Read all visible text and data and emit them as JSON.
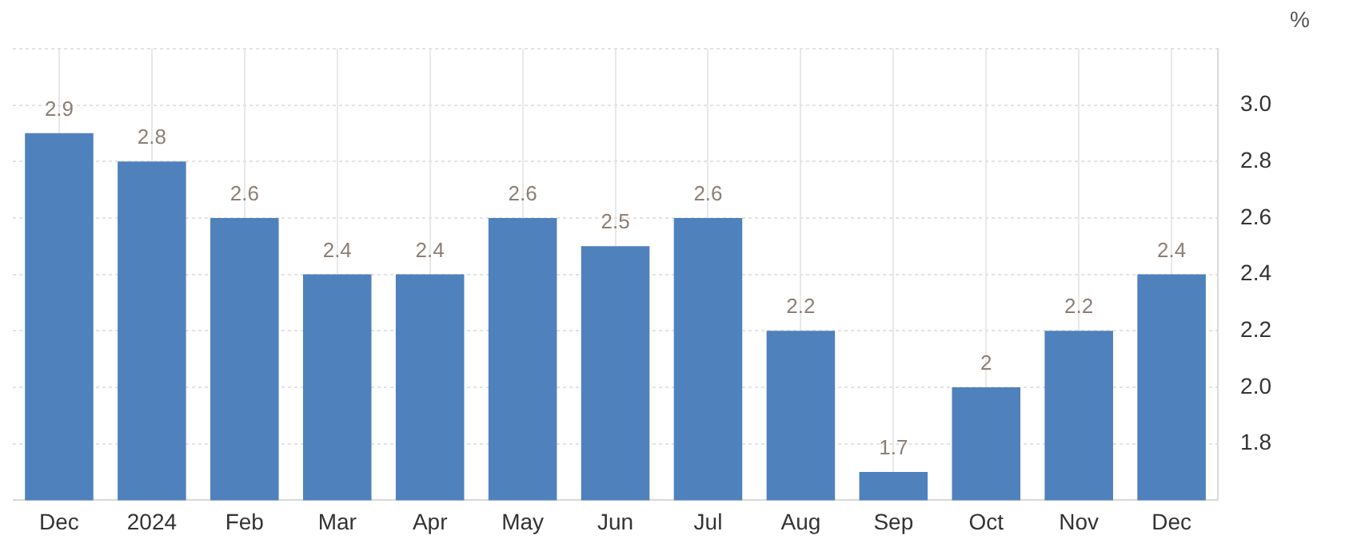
{
  "chart_data": {
    "type": "bar",
    "ylabel": "%",
    "categories": [
      "Dec",
      "2024",
      "Feb",
      "Mar",
      "Apr",
      "May",
      "Jun",
      "Jul",
      "Aug",
      "Sep",
      "Oct",
      "Nov",
      "Dec"
    ],
    "values": [
      2.9,
      2.8,
      2.6,
      2.4,
      2.4,
      2.6,
      2.5,
      2.6,
      2.2,
      1.7,
      2,
      2.2,
      2.4
    ],
    "color": "#4f81bd",
    "ylim": [
      1.6,
      3.2
    ],
    "yticks": [
      {
        "value": 1.8,
        "label": "1.8"
      },
      {
        "value": 2,
        "label": "2.0"
      },
      {
        "value": 2.2,
        "label": "2.2"
      },
      {
        "value": 2.4,
        "label": "2.4"
      },
      {
        "value": 2.6,
        "label": "2.6"
      },
      {
        "value": 2.8,
        "label": "2.8"
      },
      {
        "value": 3,
        "label": "3.0"
      },
      {
        "value": 3.2,
        "label": null
      }
    ],
    "value_labels": [
      "2.9",
      "2.8",
      "2.6",
      "2.4",
      "2.4",
      "2.6",
      "2.5",
      "2.6",
      "2.2",
      "1.7",
      "2",
      "2.2",
      "2.4"
    ],
    "grid": true,
    "legend": false
  }
}
